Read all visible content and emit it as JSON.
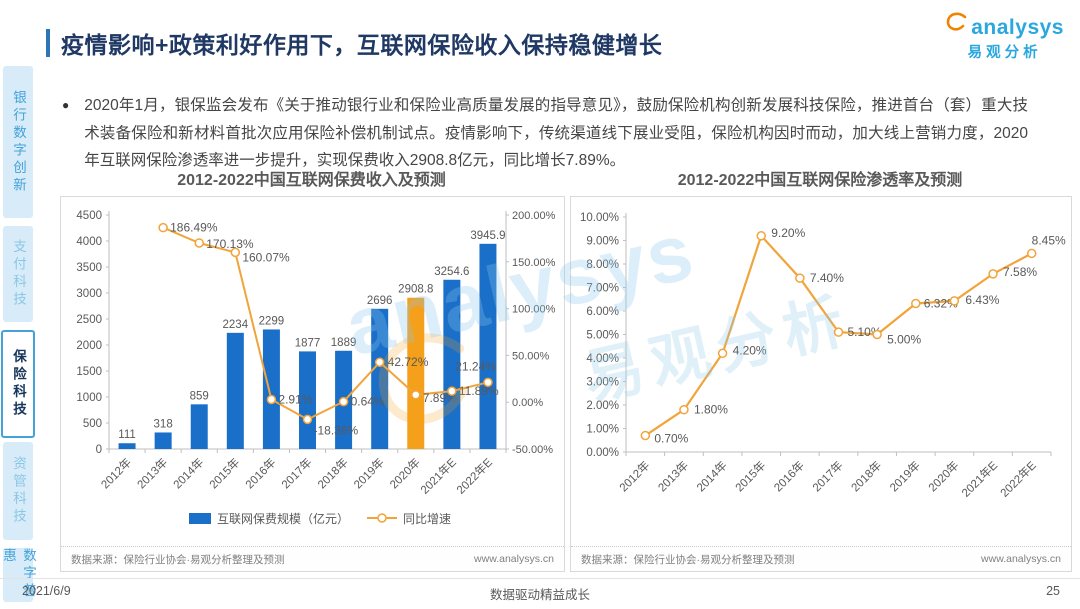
{
  "page": {
    "title": "疫情影响+政策利好作用下，互联网保险收入保持稳健增长",
    "logo": {
      "brand": "analysys",
      "brand_cn": "易观分析"
    },
    "bullet_text": "2020年1月，银保监会发布《关于推动银行业和保险业高质量发展的指导意见》，鼓励保险机构创新发展科技保险，推进首台（套）重大技术装备保险和新材料首批次应用保险补偿机制试点。疫情影响下，传统渠道线下展业受阻，保险机构因时而动，加大线上营销力度，2020年互联网保险渗透率进一步提升，实现保费收入2908.8亿元，同比增长7.89%。",
    "watermark": {
      "line1": "analysys",
      "line2": "易观分析"
    },
    "footer": {
      "date": "2021/6/9",
      "slogan": "数据驱动精益成长",
      "page_number": "25"
    }
  },
  "sidebar": {
    "items": [
      {
        "label": "银行数字创新",
        "active": false
      },
      {
        "label": "支付科技",
        "active": false
      },
      {
        "label": "保险科技",
        "active": true
      },
      {
        "label": "资管科技",
        "active": false
      },
      {
        "label": "数字普惠",
        "active": false
      }
    ]
  },
  "chart_data": [
    {
      "type": "bar",
      "title": "2012-2022中国互联网保费收入及预测",
      "categories": [
        "2012年",
        "2013年",
        "2014年",
        "2015年",
        "2016年",
        "2017年",
        "2018年",
        "2019年",
        "2020年",
        "2021年E",
        "2022年E"
      ],
      "series": [
        {
          "name": "互联网保费规模（亿元）",
          "kind": "bar",
          "values": [
            111,
            318,
            859,
            2234,
            2299,
            1877,
            1889,
            2696,
            2908.8,
            3254.6,
            3945.9
          ],
          "value_labels": [
            "111",
            "318",
            "859",
            "2234",
            "2299",
            "1877",
            "1889",
            "2696",
            "2908.8",
            "3254.6",
            "3945.9"
          ],
          "color": "#1A6FC9",
          "highlight_index": 8,
          "highlight_color": "#F5A01A"
        },
        {
          "name": "同比增速",
          "kind": "line",
          "values": [
            null,
            186.49,
            170.13,
            160.07,
            2.91,
            -18.36,
            0.64,
            42.72,
            7.89,
            11.89,
            21.24
          ],
          "value_labels": [
            null,
            "186.49%",
            "170.13%",
            "160.07%",
            "2.91%",
            "-18.36%",
            "0.64%",
            "42.72%",
            "7.89%",
            "11.89%",
            "21.24%"
          ],
          "color": "#F2A33A"
        }
      ],
      "left_axis": {
        "min": 0,
        "max": 4500,
        "step": 500
      },
      "right_axis": {
        "min": -50,
        "max": 200,
        "step": 50
      },
      "legend_position": "bottom",
      "grid": false,
      "source": "数据来源：保险行业协会·易观分析整理及预测",
      "site": "www.analysys.cn"
    },
    {
      "type": "line",
      "title": "2012-2022中国互联网保险渗透率及预测",
      "categories": [
        "2012年",
        "2013年",
        "2014年",
        "2015年",
        "2016年",
        "2017年",
        "2018年",
        "2019年",
        "2020年",
        "2021年E",
        "2022年E"
      ],
      "values": [
        0.7,
        1.8,
        4.2,
        9.2,
        7.4,
        5.1,
        5.0,
        6.32,
        6.43,
        7.58,
        8.45
      ],
      "value_labels": [
        "0.70%",
        "1.80%",
        "4.20%",
        "9.20%",
        "7.40%",
        "5.10%",
        "5.00%",
        "6.32%",
        "6.43%",
        "7.58%",
        "8.45%"
      ],
      "y_axis": {
        "min": 0,
        "max": 10,
        "step": 1
      },
      "color": "#F2A33A",
      "grid": false,
      "source": "数据来源：保险行业协会·易观分析整理及预测",
      "site": "www.analysys.cn"
    }
  ]
}
